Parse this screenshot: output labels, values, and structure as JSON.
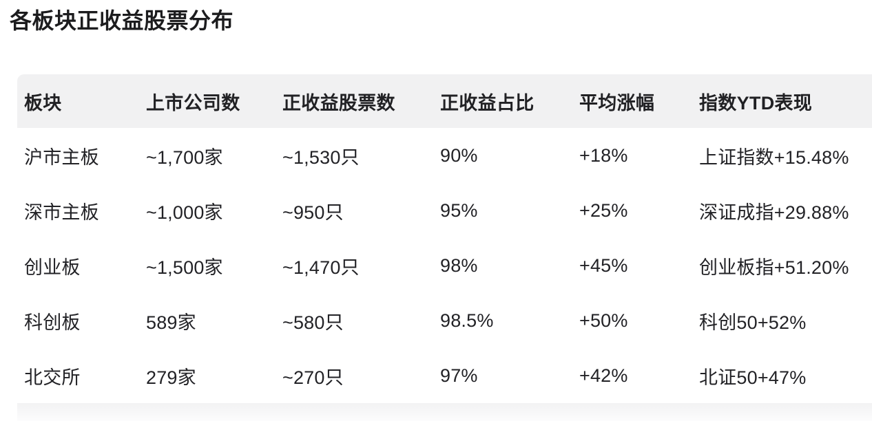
{
  "page": {
    "title": "各板块正收益股票分布"
  },
  "colors": {
    "header_bg": "#f1f1f2",
    "row_bg": "#ffffff",
    "text": "#222226",
    "title_text": "#1c1c1e"
  },
  "table": {
    "columns": [
      {
        "id": "board",
        "label": "板块"
      },
      {
        "id": "listed_companies",
        "label": "上市公司数"
      },
      {
        "id": "positive_stocks",
        "label": "正收益股票数"
      },
      {
        "id": "positive_ratio",
        "label": "正收益占比"
      },
      {
        "id": "avg_gain",
        "label": "平均涨幅"
      },
      {
        "id": "index_ytd",
        "label": "指数YTD表现"
      }
    ],
    "rows": [
      [
        "沪市主板",
        "~1,700家",
        "~1,530只",
        "90%",
        "+18%",
        "上证指数+15.48%"
      ],
      [
        "深市主板",
        "~1,000家",
        "~950只",
        "95%",
        "+25%",
        "深证成指+29.88%"
      ],
      [
        "创业板",
        "~1,500家",
        "~1,470只",
        "98%",
        "+45%",
        "创业板指+51.20%"
      ],
      [
        "科创板",
        "589家",
        "~580只",
        "98.5%",
        "+50%",
        "科创50+52%"
      ],
      [
        "北交所",
        "279家",
        "~270只",
        "97%",
        "+42%",
        "北证50+47%"
      ]
    ]
  }
}
